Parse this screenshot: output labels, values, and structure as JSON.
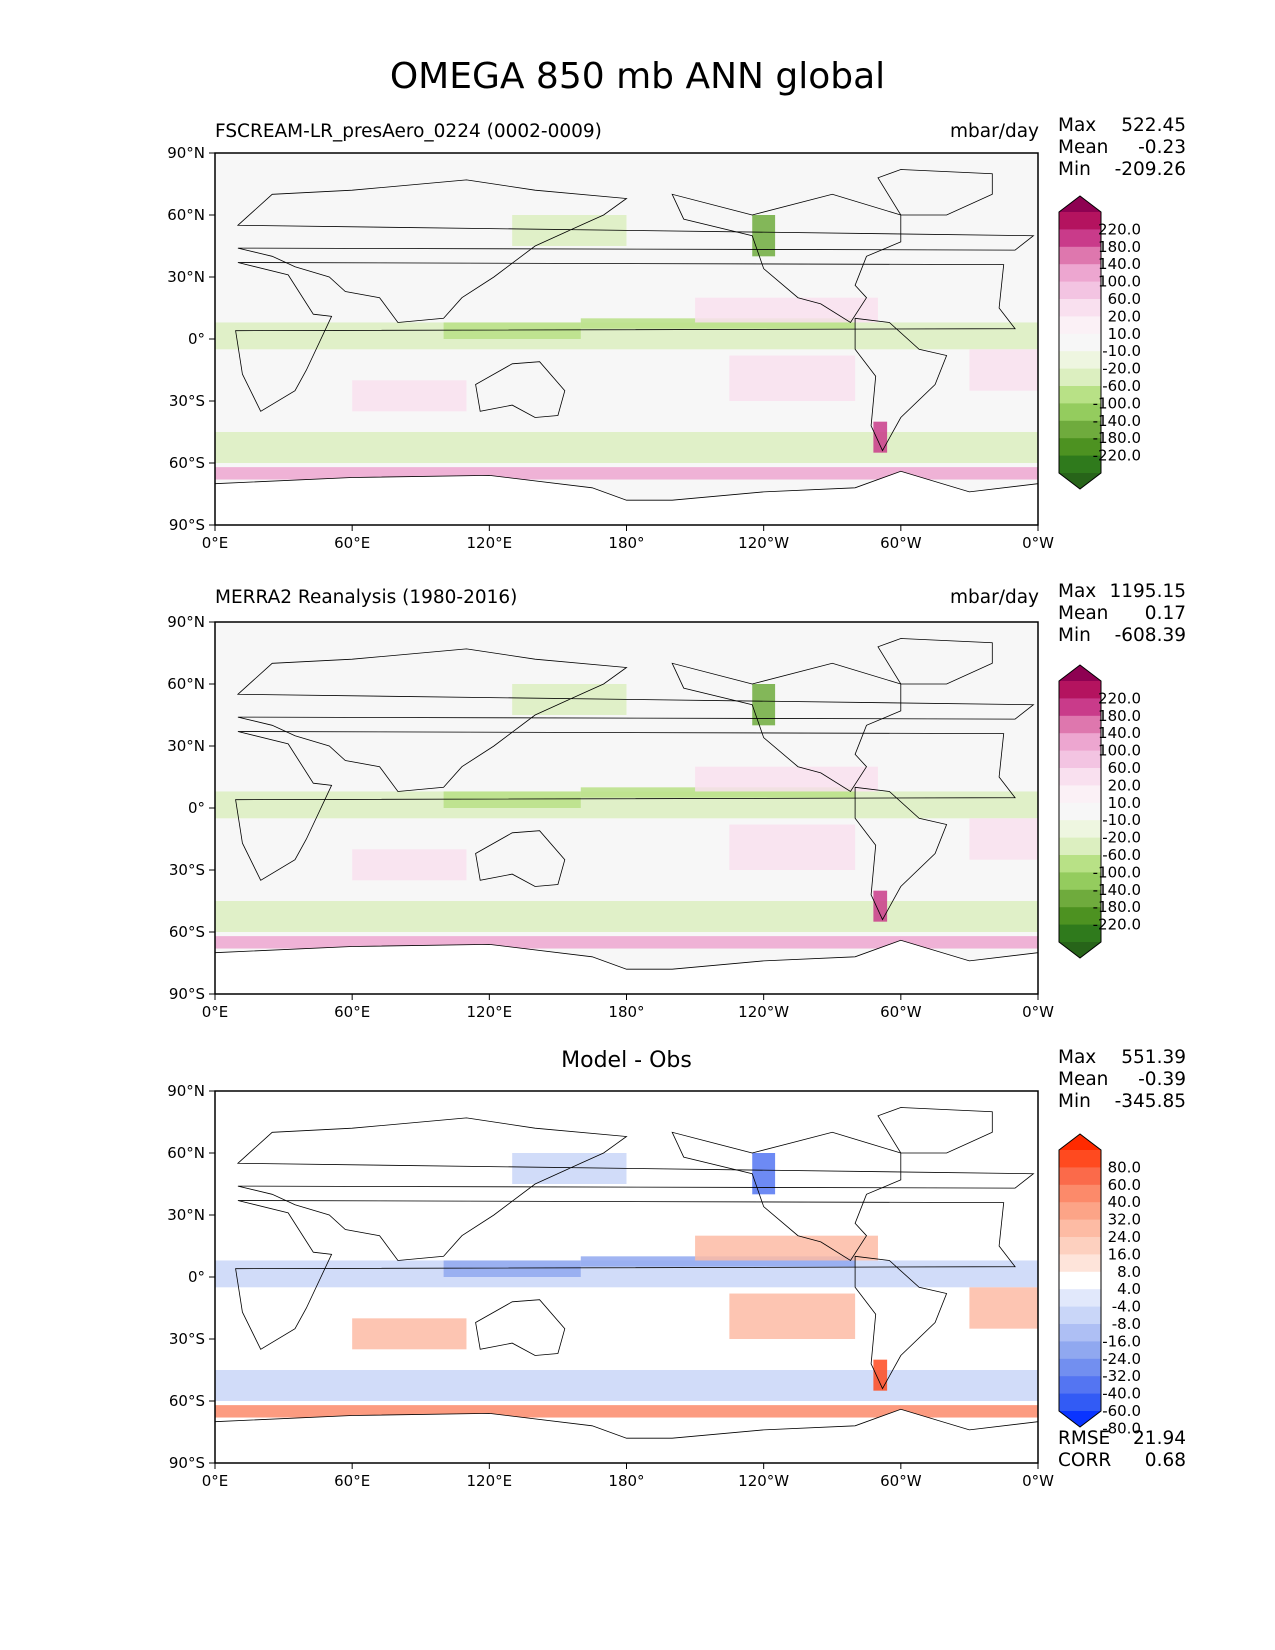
{
  "title": "OMEGA 850 mb ANN global",
  "lat_ticks": [
    "90°N",
    "60°N",
    "30°N",
    "0°",
    "30°S",
    "60°S",
    "90°S"
  ],
  "lon_ticks": [
    "0°E",
    "60°E",
    "120°E",
    "180°",
    "120°W",
    "60°W",
    "0°W"
  ],
  "panels": [
    {
      "title": "FSCREAM-LR_presAero_0224 (0002-0009)",
      "units": "mbar/day",
      "center_title": "",
      "stats": {
        "max_label": "Max",
        "max": "522.45",
        "mean_label": "Mean",
        "mean": "-0.23",
        "min_label": "Min",
        "min": "-209.26"
      },
      "colorbar": {
        "labels": [
          "220.0",
          "180.0",
          "140.0",
          "100.0",
          "60.0",
          "20.0",
          "10.0",
          "-10.0",
          "-20.0",
          "-60.0",
          "-100.0",
          "-140.0",
          "-180.0",
          "-220.0"
        ],
        "colors": [
          "#8e0152",
          "#b4135f",
          "#c93b8a",
          "#de77ae",
          "#eda6d0",
          "#f3c4e2",
          "#f9e0ef",
          "#fbf1f6",
          "#f7f7f7",
          "#eef6e0",
          "#dcefc0",
          "#b8e186",
          "#94cc5e",
          "#6fab3d",
          "#4d9221",
          "#2f7a1c",
          "#276419"
        ]
      }
    },
    {
      "title": "MERRA2 Reanalysis (1980-2016)",
      "units": "mbar/day",
      "center_title": "",
      "stats": {
        "max_label": "Max",
        "max": "1195.15",
        "mean_label": "Mean",
        "mean": "0.17",
        "min_label": "Min",
        "min": "-608.39"
      },
      "colorbar": {
        "labels": [
          "220.0",
          "180.0",
          "140.0",
          "100.0",
          "60.0",
          "20.0",
          "10.0",
          "-10.0",
          "-20.0",
          "-60.0",
          "-100.0",
          "-140.0",
          "-180.0",
          "-220.0"
        ],
        "colors": [
          "#8e0152",
          "#b4135f",
          "#c93b8a",
          "#de77ae",
          "#eda6d0",
          "#f3c4e2",
          "#f9e0ef",
          "#fbf1f6",
          "#f7f7f7",
          "#eef6e0",
          "#dcefc0",
          "#b8e186",
          "#94cc5e",
          "#6fab3d",
          "#4d9221",
          "#2f7a1c",
          "#276419"
        ]
      }
    },
    {
      "title": "",
      "units": "",
      "center_title": "Model - Obs",
      "stats": {
        "max_label": "Max",
        "max": "551.39",
        "mean_label": "Mean",
        "mean": "-0.39",
        "min_label": "Min",
        "min": "-345.85"
      },
      "extra_stats": {
        "rmse_label": "RMSE",
        "rmse": "21.94",
        "corr_label": "CORR",
        "corr": "0.68"
      },
      "colorbar": {
        "labels": [
          "80.0",
          "60.0",
          "40.0",
          "32.0",
          "24.0",
          "16.0",
          "8.0",
          "4.0",
          "-4.0",
          "-8.0",
          "-16.0",
          "-24.0",
          "-32.0",
          "-40.0",
          "-60.0",
          "-80.0"
        ],
        "colors": [
          "#ff2a00",
          "#ff4a1f",
          "#fb6a4a",
          "#fc8a6a",
          "#fca487",
          "#fdbba4",
          "#fdd0bf",
          "#fee4da",
          "#ffffff",
          "#e1e8fb",
          "#c9d6f8",
          "#aebff4",
          "#90a8f0",
          "#728ff0",
          "#5475f2",
          "#325bf5",
          "#0a34ff"
        ]
      }
    }
  ]
}
